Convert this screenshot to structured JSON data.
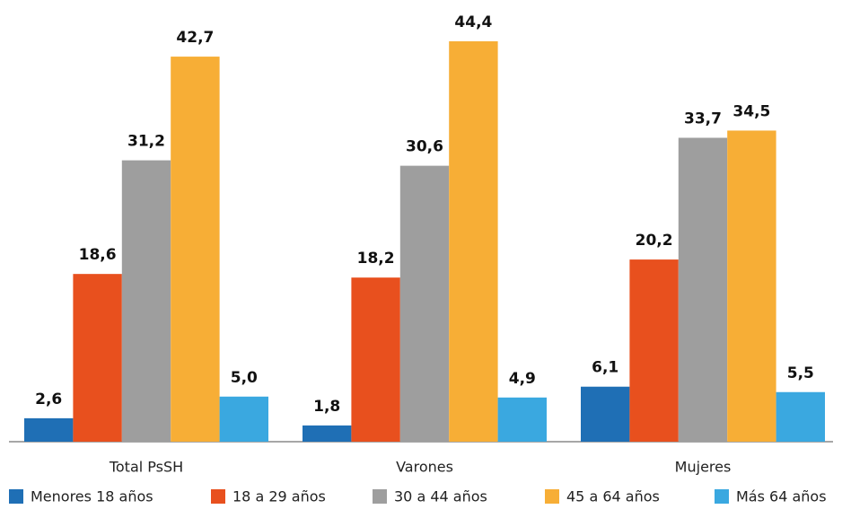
{
  "chart_data": {
    "type": "bar",
    "categories": [
      "Total PsSH",
      "Varones",
      "Mujeres"
    ],
    "series": [
      {
        "name": "Menores 18 años",
        "color": "#1f6fb5",
        "values": [
          2.6,
          1.8,
          6.1
        ],
        "value_labels": [
          "2,6",
          "1,8",
          "6,1"
        ]
      },
      {
        "name": "18 a 29 años",
        "color": "#e8501e",
        "values": [
          18.6,
          18.2,
          20.2
        ],
        "value_labels": [
          "18,6",
          "18,2",
          "20,2"
        ]
      },
      {
        "name": "30 a 44 años",
        "color": "#9e9e9e",
        "values": [
          31.2,
          30.6,
          33.7
        ],
        "value_labels": [
          "31,2",
          "30,6",
          "33,7"
        ]
      },
      {
        "name": "45 a 64 años",
        "color": "#f7ae36",
        "values": [
          42.7,
          44.4,
          34.5
        ],
        "value_labels": [
          "42,7",
          "44,4",
          "34,5"
        ]
      },
      {
        "name": "Más 64 años",
        "color": "#3aa8e0",
        "values": [
          5.0,
          4.9,
          5.5
        ],
        "value_labels": [
          "5,0",
          "4,9",
          "5,5"
        ]
      }
    ],
    "legend": "bottom"
  }
}
